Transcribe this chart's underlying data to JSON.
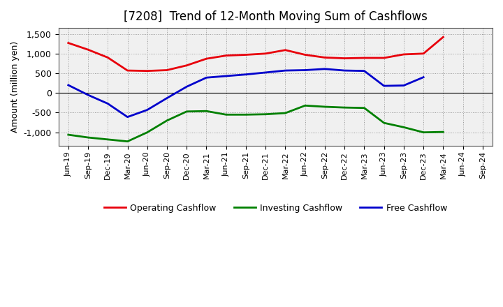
{
  "title": "[7208]  Trend of 12-Month Moving Sum of Cashflows",
  "ylabel": "Amount (million yen)",
  "x_labels": [
    "Jun-19",
    "Sep-19",
    "Dec-19",
    "Mar-20",
    "Jun-20",
    "Sep-20",
    "Dec-20",
    "Mar-21",
    "Jun-21",
    "Sep-21",
    "Dec-21",
    "Mar-22",
    "Jun-22",
    "Sep-22",
    "Dec-22",
    "Mar-23",
    "Jun-23",
    "Sep-23",
    "Dec-23",
    "Mar-24",
    "Jun-24",
    "Sep-24"
  ],
  "operating_cashflow": [
    1270,
    1100,
    900,
    570,
    560,
    580,
    700,
    870,
    950,
    970,
    1000,
    1090,
    970,
    900,
    880,
    890,
    890,
    980,
    1000,
    1420,
    null,
    null
  ],
  "investing_cashflow": [
    -1060,
    -1130,
    -1180,
    -1230,
    -1000,
    -700,
    -470,
    -460,
    -550,
    -550,
    -540,
    -510,
    -320,
    -350,
    -370,
    -380,
    -760,
    -870,
    -1000,
    -990,
    null,
    null
  ],
  "free_cashflow": [
    200,
    -50,
    -270,
    -610,
    -430,
    -130,
    160,
    390,
    430,
    470,
    520,
    570,
    580,
    610,
    570,
    560,
    180,
    190,
    400,
    null,
    null,
    null
  ],
  "operating_color": "#e8000b",
  "investing_color": "#008000",
  "free_color": "#0000cc",
  "background_color": "#ffffff",
  "plot_bg_color": "#f0f0f0",
  "grid_color": "#999999",
  "ylim": [
    -1350,
    1650
  ],
  "yticks": [
    -1000,
    -500,
    0,
    500,
    1000,
    1500
  ],
  "line_width": 2.0,
  "title_fontsize": 12,
  "axis_fontsize": 9,
  "tick_fontsize": 8,
  "legend_fontsize": 9
}
